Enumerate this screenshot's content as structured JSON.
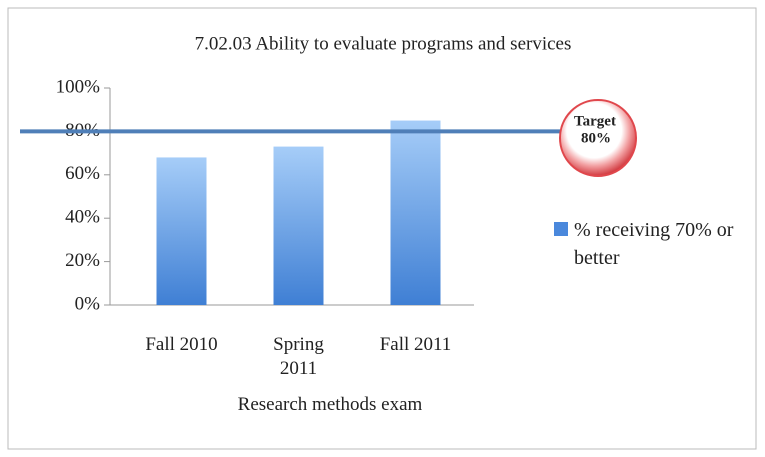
{
  "chart_data": {
    "type": "bar",
    "title": "7.02.03 Ability to evaluate programs and services",
    "categories": [
      "Fall 2010",
      "Spring 2011",
      "Fall 2011"
    ],
    "series": [
      {
        "name": "% receiving 70% or better",
        "color": "#4a88dc",
        "values": [
          68,
          73,
          85
        ]
      }
    ],
    "x_label": "Research methods exam",
    "ylim": [
      0,
      100
    ],
    "yticks": [
      {
        "value": 0,
        "label": "0%"
      },
      {
        "value": 20,
        "label": "20%"
      },
      {
        "value": 40,
        "label": "40%"
      },
      {
        "value": 60,
        "label": "60%"
      },
      {
        "value": 80,
        "label": "80%"
      },
      {
        "value": 100,
        "label": "100%"
      }
    ],
    "target": {
      "value": 80,
      "text": "Target",
      "value_label": "80%",
      "color": "#4f7fb8",
      "ring_color": "#e0474c"
    },
    "legend": "right",
    "grid": false
  }
}
